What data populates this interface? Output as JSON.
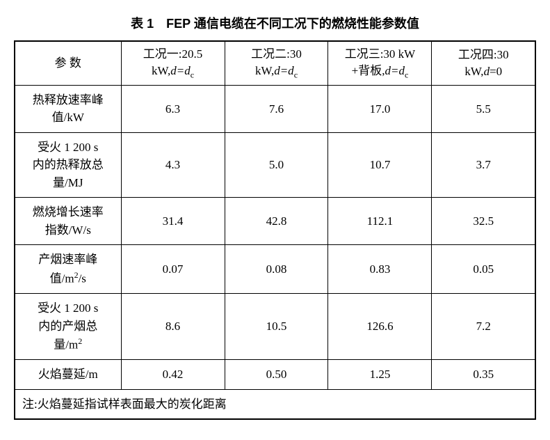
{
  "title": "表 1　FEP 通信电缆在不同工况下的燃烧性能参数值",
  "table": {
    "header": {
      "param": "参 数",
      "cond1_line1": "工况一:20.5",
      "cond1_line2_prefix": "kW,",
      "cond1_line2_eq": "d=d",
      "cond1_line2_sub": "c",
      "cond2_line1": "工况二:30",
      "cond2_line2_prefix": "kW,",
      "cond2_line2_eq": "d=d",
      "cond2_line2_sub": "c",
      "cond3_line1": "工况三:30 kW",
      "cond3_line2_prefix": "+背板,",
      "cond3_line2_eq": "d=d",
      "cond3_line2_sub": "c",
      "cond4_line1": "工况四:30",
      "cond4_line2_prefix": "kW,",
      "cond4_line2_eq": "d",
      "cond4_line2_suffix": "=0"
    },
    "rows": [
      {
        "label_line1": "热释放速率峰",
        "label_line2": "值/kW",
        "v1": "6.3",
        "v2": "7.6",
        "v3": "17.0",
        "v4": "5.5"
      },
      {
        "label_line1": "受火 1 200 s",
        "label_line2": "内的热释放总",
        "label_line3": "量/MJ",
        "v1": "4.3",
        "v2": "5.0",
        "v3": "10.7",
        "v4": "3.7"
      },
      {
        "label_line1": "燃烧增长速率",
        "label_line2": "指数/W/s",
        "v1": "31.4",
        "v2": "42.8",
        "v3": "112.1",
        "v4": "32.5"
      },
      {
        "label_line1": "产烟速率峰",
        "label_line2_prefix": "值/m",
        "label_line2_sup": "2",
        "label_line2_suffix": "/s",
        "v1": "0.07",
        "v2": "0.08",
        "v3": "0.83",
        "v4": "0.05"
      },
      {
        "label_line1": "受火 1 200 s",
        "label_line2": "内的产烟总",
        "label_line3_prefix": "量/m",
        "label_line3_sup": "2",
        "v1": "8.6",
        "v2": "10.5",
        "v3": "126.6",
        "v4": "7.2"
      },
      {
        "label_line1": "火焰蔓延/m",
        "v1": "0.42",
        "v2": "0.50",
        "v3": "1.25",
        "v4": "0.35"
      }
    ],
    "note": "注:火焰蔓延指试样表面最大的炭化距离"
  }
}
